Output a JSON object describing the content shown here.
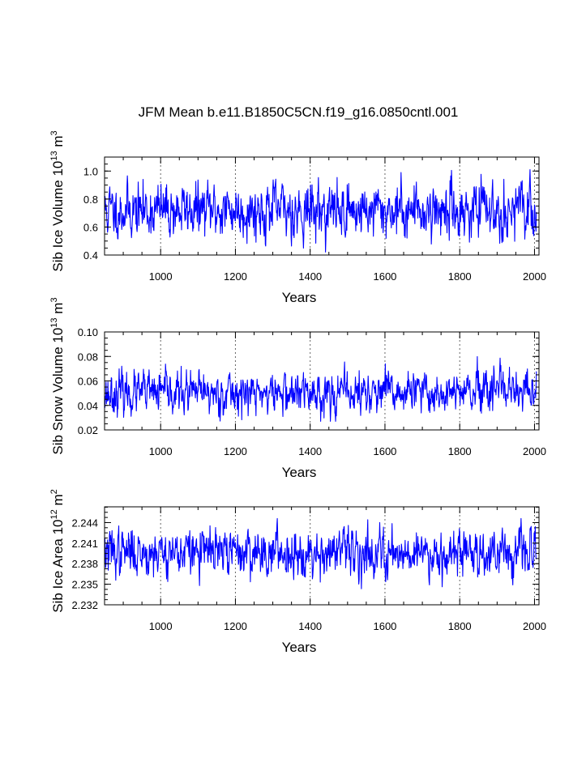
{
  "title": "JFM Mean b.e11.B1850C5CN.f19_g16.0850cntl.001",
  "colors": {
    "series": "#0000ff",
    "axes": "#000000",
    "grid": "#666666"
  },
  "chart_data": [
    {
      "type": "line",
      "name": "sib-ice-volume",
      "ylabel": "Sib Ice Volume 10",
      "ylabel_exp": "13",
      "ylabel_unit": " m",
      "ylabel_unit_exp": "3",
      "xlabel": "Years",
      "xlim": [
        850,
        2012
      ],
      "ylim": [
        0.4,
        1.1
      ],
      "xticks": [
        1000,
        1200,
        1400,
        1600,
        1800,
        2000
      ],
      "yticks": [
        0.4,
        0.6,
        0.8,
        1.0
      ],
      "ytick_labels": [
        "0.4",
        "0.6",
        "0.8",
        "1.0"
      ],
      "grid_x": true,
      "series": {
        "name": "Sib Ice Volume",
        "x_start": 850,
        "x_end": 2005,
        "mean": 0.72,
        "spread": 0.085,
        "min_observed": 0.42,
        "max_observed": 1.01,
        "seed": 11
      }
    },
    {
      "type": "line",
      "name": "sib-snow-volume",
      "ylabel": "Sib Snow Volume 10",
      "ylabel_exp": "13",
      "ylabel_unit": " m",
      "ylabel_unit_exp": "3",
      "xlabel": "Years",
      "xlim": [
        850,
        2012
      ],
      "ylim": [
        0.02,
        0.1
      ],
      "xticks": [
        1000,
        1200,
        1400,
        1600,
        1800,
        2000
      ],
      "yticks": [
        0.02,
        0.04,
        0.06,
        0.08,
        0.1
      ],
      "ytick_labels": [
        "0.02",
        "0.04",
        "0.06",
        "0.08",
        "0.10"
      ],
      "grid_x": true,
      "series": {
        "name": "Sib Snow Volume",
        "x_start": 850,
        "x_end": 2005,
        "mean": 0.05,
        "spread": 0.0075,
        "min_observed": 0.027,
        "max_observed": 0.096,
        "seed": 23
      }
    },
    {
      "type": "line",
      "name": "sib-ice-area",
      "ylabel": "Sib Ice Area 10",
      "ylabel_exp": "12",
      "ylabel_unit": " m",
      "ylabel_unit_exp": "2",
      "xlabel": "Years",
      "xlim": [
        850,
        2012
      ],
      "ylim": [
        2.232,
        2.2463
      ],
      "xticks": [
        1000,
        1200,
        1400,
        1600,
        1800,
        2000
      ],
      "yticks": [
        2.232,
        2.235,
        2.238,
        2.241,
        2.244
      ],
      "ytick_labels": [
        "2.232",
        "2.235",
        "2.238",
        "2.241",
        "2.244"
      ],
      "grid_x": true,
      "series": {
        "name": "Sib Ice Area",
        "x_start": 850,
        "x_end": 2005,
        "mean": 2.2397,
        "spread": 0.0015,
        "min_observed": 2.2327,
        "max_observed": 2.2446,
        "seed": 37
      }
    }
  ]
}
